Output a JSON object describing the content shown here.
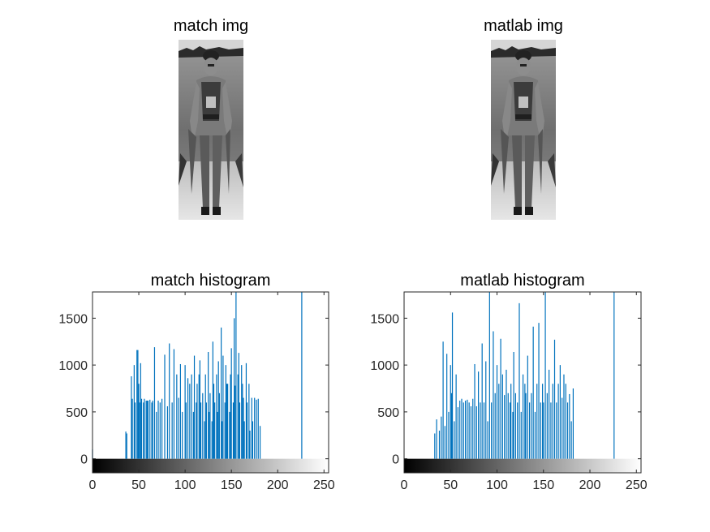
{
  "figure": {
    "panels": [
      {
        "title": "match img"
      },
      {
        "title": "matlab img"
      }
    ]
  },
  "chart_data": [
    {
      "type": "bar",
      "title": "match histogram",
      "xlabel": "",
      "ylabel": "",
      "xlim": [
        0,
        255
      ],
      "ylim": [
        -150,
        1780
      ],
      "xticks": [
        0,
        50,
        100,
        150,
        200,
        250
      ],
      "yticks": [
        0,
        500,
        1000,
        1500
      ],
      "colorbar": "gray",
      "bar_color": "#0072BD",
      "bins": [
        0,
        36,
        37,
        42,
        43,
        45,
        46,
        48,
        49,
        50,
        51,
        52,
        53,
        55,
        56,
        58,
        59,
        60,
        62,
        64,
        65,
        67,
        69,
        71,
        73,
        75,
        78,
        81,
        83,
        86,
        88,
        91,
        93,
        95,
        97,
        100,
        101,
        103,
        105,
        107,
        109,
        110,
        112,
        113,
        115,
        116,
        117,
        119,
        121,
        122,
        123,
        125,
        126,
        127,
        129,
        130,
        131,
        132,
        134,
        135,
        136,
        137,
        139,
        140,
        141,
        143,
        144,
        145,
        146,
        148,
        149,
        150,
        152,
        153,
        154,
        155,
        157,
        158,
        159,
        161,
        162,
        163,
        164,
        166,
        167,
        169,
        170,
        172,
        173,
        175,
        177,
        179,
        181,
        226
      ],
      "counts": [
        100,
        290,
        270,
        880,
        640,
        1000,
        600,
        1160,
        1160,
        800,
        600,
        1020,
        640,
        600,
        640,
        620,
        620,
        620,
        630,
        600,
        620,
        1190,
        500,
        620,
        600,
        640,
        1110,
        560,
        1230,
        600,
        1170,
        900,
        650,
        1010,
        500,
        1000,
        600,
        860,
        800,
        900,
        500,
        1100,
        600,
        800,
        900,
        1050,
        600,
        700,
        400,
        900,
        600,
        1140,
        500,
        700,
        400,
        1250,
        800,
        600,
        900,
        500,
        1040,
        700,
        1400,
        400,
        1100,
        600,
        1000,
        800,
        800,
        500,
        900,
        1180,
        600,
        1500,
        780,
        1780,
        900,
        1130,
        600,
        1000,
        800,
        650,
        400,
        1020,
        600,
        800,
        300,
        650,
        400,
        650,
        630,
        640,
        350,
        1780
      ]
    },
    {
      "type": "bar",
      "title": "matlab histogram",
      "xlabel": "",
      "ylabel": "",
      "xlim": [
        0,
        255
      ],
      "ylim": [
        -150,
        1780
      ],
      "xticks": [
        0,
        50,
        100,
        150,
        200,
        250
      ],
      "yticks": [
        0,
        500,
        1000,
        1500
      ],
      "colorbar": "gray",
      "bar_color": "#0072BD",
      "bins": [
        33,
        35,
        38,
        40,
        42,
        44,
        46,
        48,
        50,
        51,
        52,
        54,
        56,
        58,
        60,
        62,
        64,
        66,
        68,
        70,
        72,
        74,
        76,
        78,
        80,
        82,
        84,
        86,
        88,
        90,
        92,
        94,
        96,
        98,
        100,
        102,
        104,
        106,
        108,
        110,
        112,
        114,
        115,
        117,
        118,
        120,
        122,
        124,
        126,
        128,
        130,
        131,
        133,
        135,
        137,
        139,
        141,
        143,
        145,
        147,
        149,
        150,
        152,
        154,
        156,
        158,
        160,
        162,
        164,
        166,
        168,
        170,
        172,
        174,
        176,
        178,
        180,
        182,
        226
      ],
      "counts": [
        270,
        420,
        300,
        450,
        1250,
        350,
        1120,
        500,
        1000,
        700,
        1560,
        400,
        900,
        550,
        620,
        640,
        600,
        620,
        630,
        600,
        560,
        640,
        1010,
        560,
        930,
        600,
        1230,
        600,
        1040,
        400,
        1780,
        600,
        1360,
        700,
        1000,
        800,
        1280,
        900,
        680,
        950,
        700,
        600,
        800,
        500,
        1140,
        700,
        600,
        1660,
        500,
        900,
        800,
        700,
        1100,
        600,
        700,
        1410,
        500,
        800,
        1450,
        600,
        800,
        600,
        1780,
        700,
        950,
        600,
        800,
        1270,
        600,
        800,
        1000,
        650,
        900,
        800,
        600,
        690,
        400,
        750,
        1780
      ]
    }
  ]
}
